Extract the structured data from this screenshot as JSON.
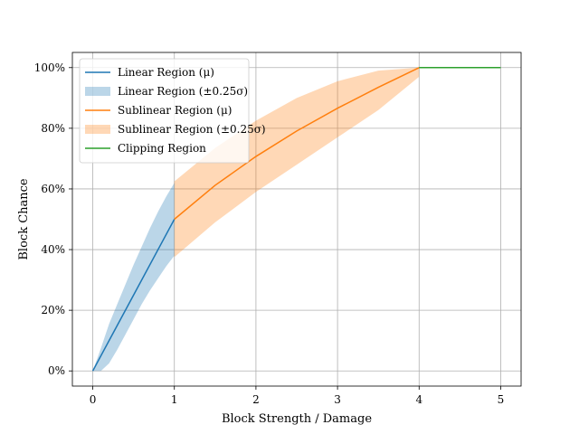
{
  "chart_data": {
    "type": "line",
    "title": "",
    "xlabel": "Block Strength / Damage",
    "ylabel": "Block Chance",
    "xlim": [
      -0.25,
      5.25
    ],
    "ylim": [
      -0.05,
      1.05
    ],
    "xticks": [
      0,
      1,
      2,
      3,
      4,
      5
    ],
    "xtick_labels": [
      "0",
      "1",
      "2",
      "3",
      "4",
      "5"
    ],
    "yticks": [
      0,
      0.2,
      0.4,
      0.6,
      0.8,
      1.0
    ],
    "ytick_labels": [
      "0%",
      "20%",
      "40%",
      "60%",
      "80%",
      "100%"
    ],
    "grid": true,
    "legend_position": "top-left",
    "series": [
      {
        "name": "Linear Region (μ)",
        "kind": "line",
        "color": "#1f77b4",
        "x": [
          0,
          1
        ],
        "y": [
          0,
          0.5
        ]
      },
      {
        "name": "Linear Region (±0.25σ)",
        "kind": "band",
        "color": "#1f77b4",
        "opacity": 0.3,
        "x": [
          0,
          0.1,
          0.2,
          0.3,
          0.4,
          0.5,
          0.6,
          0.7,
          0.8,
          0.9,
          1.0
        ],
        "lower": [
          0,
          0,
          0.025,
          0.07,
          0.12,
          0.17,
          0.22,
          0.265,
          0.305,
          0.345,
          0.38
        ],
        "upper": [
          0,
          0.075,
          0.155,
          0.22,
          0.285,
          0.35,
          0.41,
          0.47,
          0.525,
          0.575,
          0.62
        ]
      },
      {
        "name": "Sublinear Region (μ)",
        "kind": "line",
        "color": "#ff7f0e",
        "x": [
          1,
          1.5,
          2,
          2.5,
          3,
          3.5,
          4
        ],
        "y": [
          0.5,
          0.612,
          0.707,
          0.791,
          0.866,
          0.935,
          1.0
        ]
      },
      {
        "name": "Sublinear Region (±0.25σ)",
        "kind": "band",
        "color": "#ff7f0e",
        "opacity": 0.3,
        "x": [
          1,
          1.5,
          2,
          2.5,
          3,
          3.5,
          4
        ],
        "lower": [
          0.375,
          0.49,
          0.59,
          0.68,
          0.77,
          0.86,
          0.97
        ],
        "upper": [
          0.625,
          0.735,
          0.825,
          0.9,
          0.955,
          0.99,
          1.0
        ]
      },
      {
        "name": "Clipping Region",
        "kind": "line",
        "color": "#2ca02c",
        "x": [
          4,
          5
        ],
        "y": [
          1.0,
          1.0
        ]
      }
    ]
  }
}
